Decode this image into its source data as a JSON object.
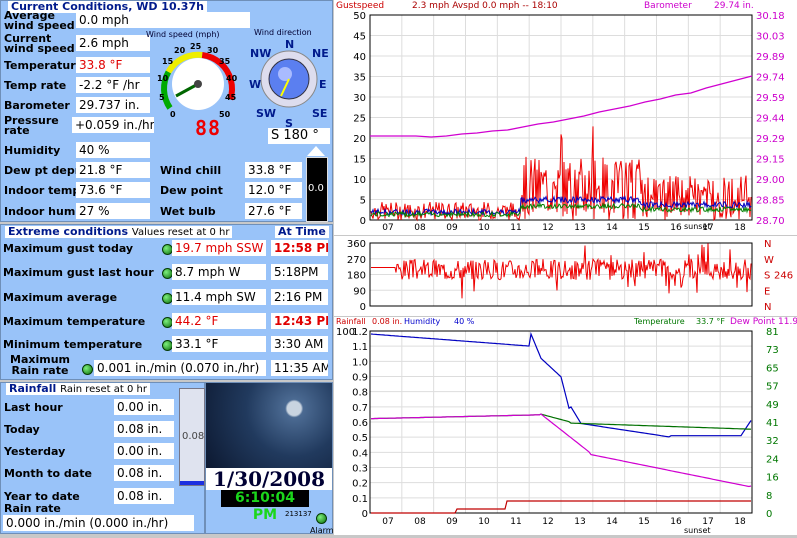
{
  "current": {
    "title": "Current Conditions, WD 10.37h",
    "rows_left": [
      {
        "label": "Average\nwind speed",
        "value": "0.0 mph"
      },
      {
        "label": "Current\nwind speed",
        "value": "2.6 mph"
      },
      {
        "label": "Temperature",
        "value": "33.8 °F"
      },
      {
        "label": "Temp rate",
        "value": "-2.2 °F /hr"
      },
      {
        "label": "Barometer",
        "value": "29.737 in."
      },
      {
        "label": "Pressure\nrate",
        "value": "+0.059 in./hr"
      },
      {
        "label": "Humidity",
        "value": "40 %"
      },
      {
        "label": "Dew pt depr.",
        "value": "21.8 °F"
      },
      {
        "label": "Indoor temp.",
        "value": "73.6 °F"
      },
      {
        "label": "Indoor hum.",
        "value": "27 %"
      }
    ],
    "rows_right": [
      {
        "label": "Wind chill",
        "value": "33.8 °F"
      },
      {
        "label": "Dew point",
        "value": "12.0 °F"
      },
      {
        "label": "Wet bulb",
        "value": "27.6 °F"
      }
    ],
    "gauge_title": "Wind speed (mph)",
    "gauge_ticks": [
      "0",
      "5",
      "10",
      "15",
      "20",
      "25",
      "30",
      "35",
      "40",
      "45",
      "50"
    ],
    "gauge_digits": "88",
    "compass_title": "Wind direction",
    "compass_points": [
      "N",
      "NE",
      "E",
      "SE",
      "S",
      "SW",
      "W",
      "NW"
    ],
    "direction_value": "S  180 °",
    "side_meter": "0.0"
  },
  "extreme": {
    "title": "Extreme conditions",
    "subtitle": "Values reset at 0 hr",
    "at_time": "At Time",
    "rows": [
      {
        "label": "Maximum gust today",
        "value": "19.7 mph SSW",
        "time": "12:58 PM",
        "red": true
      },
      {
        "label": "Maximum gust last hour",
        "value": "8.7 mph  W",
        "time": "5:18PM",
        "red": false
      },
      {
        "label": "Maximum average",
        "value": "11.4 mph  SW",
        "time": "2:16 PM",
        "red": false
      },
      {
        "label": "Maximum temperature",
        "value": "44.2 °F",
        "time": "12:43 PM",
        "red": true
      },
      {
        "label": "Minimum temperature",
        "value": "33.1 °F",
        "time": "3:30 AM",
        "red": false
      },
      {
        "label": "Maximum\nRain rate",
        "value": "0.001 in./min (0.070 in./hr)",
        "time": "11:35 AM",
        "red": false
      }
    ]
  },
  "rain": {
    "title": "Rainfall",
    "subtitle": "Rain reset at 0 hr",
    "rows": [
      {
        "label": "Last hour",
        "value": "0.00 in."
      },
      {
        "label": "Today",
        "value": "0.08 in."
      },
      {
        "label": "Yesterday",
        "value": "0.00 in."
      },
      {
        "label": "Month to date",
        "value": "0.08 in."
      },
      {
        "label": "Year to date",
        "value": "0.08 in."
      }
    ],
    "rate_label": "Rain rate",
    "rate_value": "0.000 in./min (0.000 in./hr)",
    "tube_value": "0.08",
    "tube_fill": 0.04
  },
  "clock": {
    "date": "1/30/2008",
    "time": "6:10:04 PM",
    "counter": "213137",
    "alarm": "Alarm"
  },
  "chart_data": [
    {
      "type": "line",
      "header_left": "Gustspeed",
      "header_mid": "2.3 mph Avspd    0.0 mph -- 18:10",
      "header_right": "Barometer",
      "header_right_value": "29.74 in.",
      "x_ticks": [
        "07",
        "08",
        "09",
        "10",
        "11",
        "12",
        "13",
        "14",
        "15",
        "16",
        "17",
        "18"
      ],
      "x_note": "sunset",
      "y_left": [
        "50",
        "45",
        "40",
        "35",
        "30",
        "25",
        "20",
        "15",
        "10",
        "5",
        "0"
      ],
      "y_right": [
        "30.18",
        "30.03",
        "29.89",
        "29.74",
        "29.59",
        "29.44",
        "29.29",
        "29.15",
        "29.00",
        "28.85",
        "28.70"
      ],
      "ylim_left": [
        0,
        50
      ],
      "ylim_right": [
        28.7,
        30.18
      ],
      "series": [
        {
          "name": "Barometer",
          "color": "#d000d0",
          "values": [
            29.31,
            29.31,
            29.31,
            29.31,
            29.3,
            29.31,
            29.32,
            29.33,
            29.34,
            29.35,
            29.37,
            29.39,
            29.41,
            29.43,
            29.45,
            29.48,
            29.5,
            29.52,
            29.55,
            29.57,
            29.6,
            29.62,
            29.65,
            29.68,
            29.71,
            29.74
          ]
        }
      ]
    },
    {
      "type": "line",
      "y_left": [
        "360",
        "270",
        "180",
        "90",
        "0"
      ],
      "y_right": [
        "N",
        "W",
        "S",
        "E",
        "N"
      ],
      "y_right_value": "246",
      "series": [
        {
          "name": "Wind direction",
          "color": "#e00000"
        }
      ]
    },
    {
      "type": "line",
      "header_left": "Rainfall",
      "header_left_value": "0.08 in.",
      "header_hum": "Humidity",
      "header_hum_value": "40 %",
      "header_temp": "Temperature",
      "header_temp_value": "33.7 °F",
      "header_dew": "Dew Point",
      "header_dew_value": "11.9",
      "x_ticks": [
        "07",
        "08",
        "09",
        "10",
        "11",
        "12",
        "13",
        "14",
        "15",
        "16",
        "17",
        "18"
      ],
      "x_note": "sunset",
      "y_left": [
        "1.2",
        "1.1",
        "1.0",
        "0.9",
        "0.8",
        "0.7",
        "0.6",
        "0.5",
        "0.4",
        "0.3",
        "0.2",
        "0.1",
        "0"
      ],
      "y_left_top": "100",
      "y_right": [
        "81",
        "73",
        "65",
        "57",
        "49",
        "41",
        "32",
        "24",
        "16",
        "8",
        "0"
      ],
      "series": [
        {
          "name": "Rainfall",
          "color": "#c00000"
        },
        {
          "name": "Humidity",
          "color": "#0000c0"
        },
        {
          "name": "Temperature",
          "color": "#007000"
        },
        {
          "name": "Dew Point",
          "color": "#d000d0"
        }
      ]
    }
  ]
}
